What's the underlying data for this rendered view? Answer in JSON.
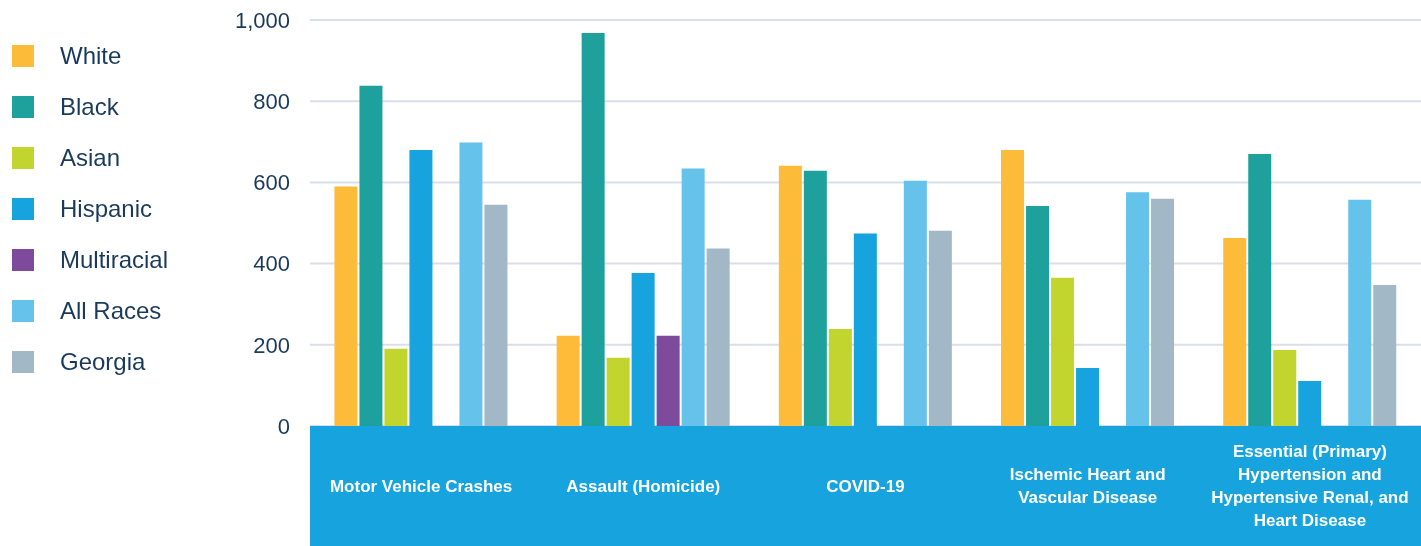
{
  "chart_data": {
    "type": "bar",
    "categories": [
      "Motor Vehicle Crashes",
      "Assault (Homicide)",
      "COVID-19",
      "Ischemic Heart and Vascular Disease",
      "Essential (Primary) Hypertension and Hypertensive Renal, and Heart Disease"
    ],
    "series": [
      {
        "name": "White",
        "color": "#fdbb3a",
        "values": [
          590,
          222,
          641,
          680,
          463
        ]
      },
      {
        "name": "Black",
        "color": "#1ea19c",
        "values": [
          838,
          968,
          629,
          542,
          670
        ]
      },
      {
        "name": "Asian",
        "color": "#c2d42e",
        "values": [
          190,
          168,
          239,
          365,
          187
        ]
      },
      {
        "name": "Hispanic",
        "color": "#17a4de",
        "values": [
          680,
          377,
          474,
          143,
          111
        ]
      },
      {
        "name": "Multiracial",
        "color": "#7e4a9b",
        "values": [
          null,
          222,
          null,
          null,
          null
        ]
      },
      {
        "name": "All Races",
        "color": "#65c2ea",
        "values": [
          698,
          634,
          604,
          576,
          557
        ]
      },
      {
        "name": "Georgia",
        "color": "#a3b8c6",
        "values": [
          545,
          437,
          481,
          560,
          347
        ]
      }
    ],
    "ylim": [
      0,
      1000
    ],
    "yticks": [
      0,
      200,
      400,
      600,
      800,
      {
        "value": 1000,
        "label": "1,000"
      }
    ],
    "grid": "y",
    "legend": "left"
  }
}
